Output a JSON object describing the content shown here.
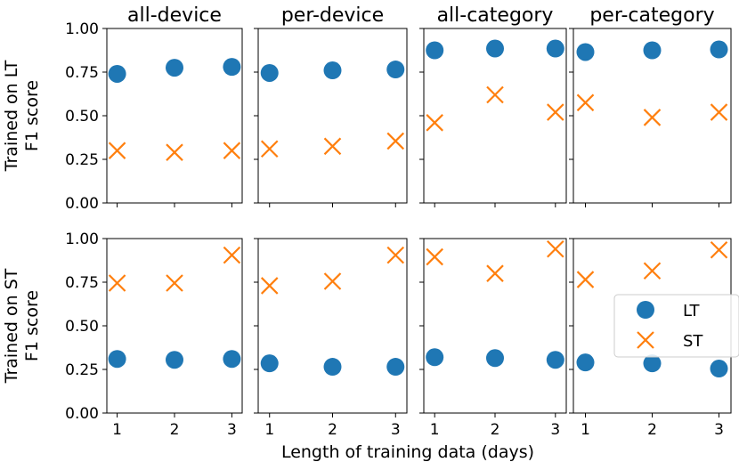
{
  "chart_data": {
    "type": "scatter",
    "xlabel": "Length of training data (days)",
    "x": [
      1,
      2,
      3
    ],
    "x_ticks": [
      "1",
      "2",
      "3"
    ],
    "ylim": [
      0.0,
      1.0
    ],
    "y_ticks": [
      "0.00",
      "0.25",
      "0.50",
      "0.75",
      "1.00"
    ],
    "columns": [
      "all-device",
      "per-device",
      "all-category",
      "per-category"
    ],
    "rows": [
      {
        "ylabel_line1": "Trained on LT",
        "ylabel_line2": "F1 score"
      },
      {
        "ylabel_line1": "Trained on ST",
        "ylabel_line2": "F1 score"
      }
    ],
    "series_styles": [
      {
        "name": "LT",
        "marker": "circle",
        "color": "#1f77b4"
      },
      {
        "name": "ST",
        "marker": "x",
        "color": "#ff7f0e"
      }
    ],
    "legend": {
      "location": "lower right of bottom-right panel",
      "entries": [
        "LT",
        "ST"
      ]
    },
    "grid": false,
    "panels": [
      {
        "row": 0,
        "col": 0,
        "title": "all-device",
        "series": [
          {
            "name": "LT",
            "values": [
              0.74,
              0.775,
              0.78
            ]
          },
          {
            "name": "ST",
            "values": [
              0.3,
              0.29,
              0.3
            ]
          }
        ]
      },
      {
        "row": 0,
        "col": 1,
        "title": "per-device",
        "series": [
          {
            "name": "LT",
            "values": [
              0.745,
              0.76,
              0.765
            ]
          },
          {
            "name": "ST",
            "values": [
              0.31,
              0.325,
              0.355
            ]
          }
        ]
      },
      {
        "row": 0,
        "col": 2,
        "title": "all-category",
        "series": [
          {
            "name": "LT",
            "values": [
              0.875,
              0.885,
              0.885
            ]
          },
          {
            "name": "ST",
            "values": [
              0.46,
              0.62,
              0.52
            ]
          }
        ]
      },
      {
        "row": 0,
        "col": 3,
        "title": "per-category",
        "series": [
          {
            "name": "LT",
            "values": [
              0.865,
              0.875,
              0.88
            ]
          },
          {
            "name": "ST",
            "values": [
              0.575,
              0.49,
              0.52
            ]
          }
        ]
      },
      {
        "row": 1,
        "col": 0,
        "series": [
          {
            "name": "LT",
            "values": [
              0.31,
              0.305,
              0.31
            ]
          },
          {
            "name": "ST",
            "values": [
              0.745,
              0.745,
              0.905
            ]
          }
        ]
      },
      {
        "row": 1,
        "col": 1,
        "series": [
          {
            "name": "LT",
            "values": [
              0.285,
              0.265,
              0.265
            ]
          },
          {
            "name": "ST",
            "values": [
              0.73,
              0.755,
              0.905
            ]
          }
        ]
      },
      {
        "row": 1,
        "col": 2,
        "series": [
          {
            "name": "LT",
            "values": [
              0.32,
              0.315,
              0.305
            ]
          },
          {
            "name": "ST",
            "values": [
              0.895,
              0.8,
              0.94
            ]
          }
        ]
      },
      {
        "row": 1,
        "col": 3,
        "series": [
          {
            "name": "LT",
            "values": [
              0.29,
              0.285,
              0.255
            ]
          },
          {
            "name": "ST",
            "values": [
              0.765,
              0.815,
              0.935
            ]
          }
        ]
      }
    ]
  }
}
